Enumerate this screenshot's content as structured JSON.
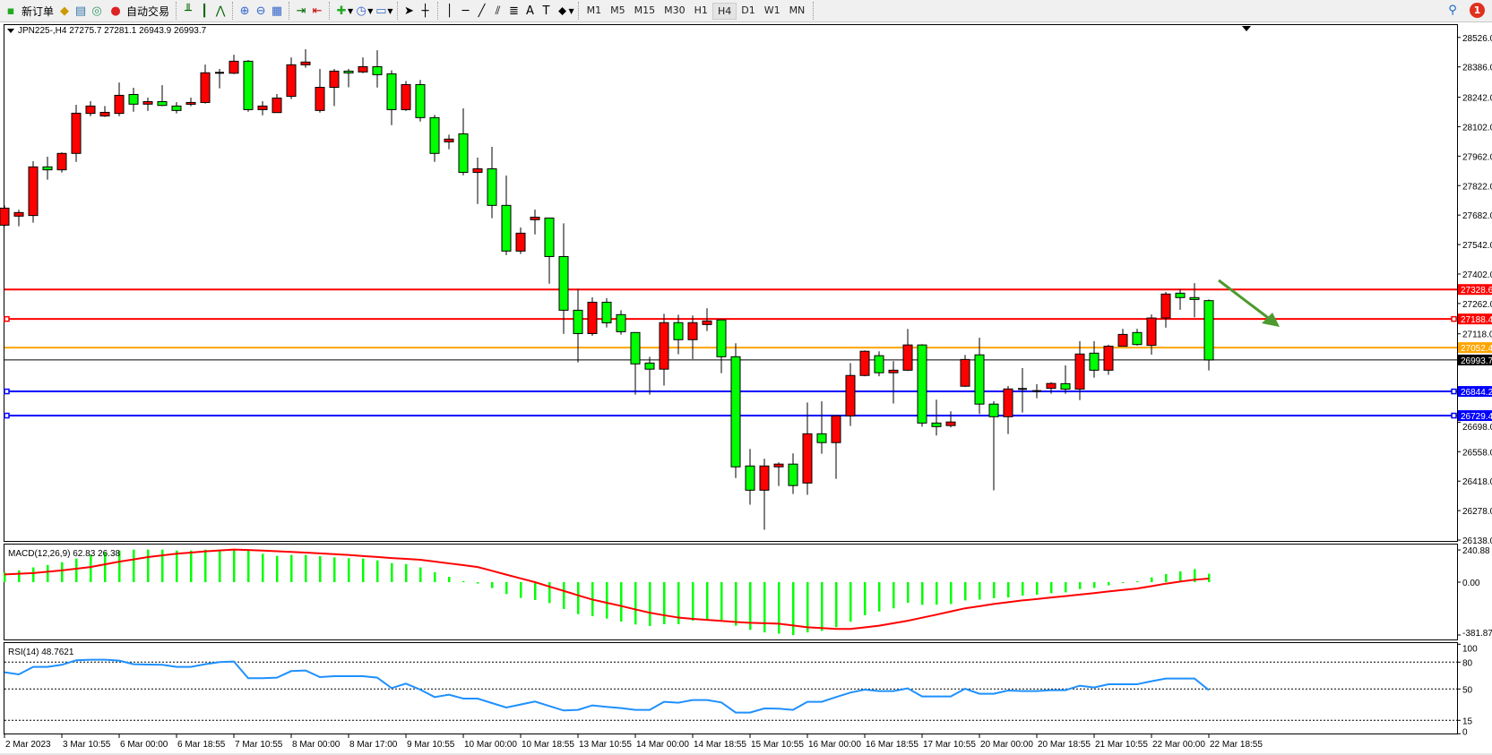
{
  "toolbar": {
    "new_order": "新订单",
    "auto_trading": "自动交易",
    "timeframes": [
      "M1",
      "M5",
      "M15",
      "M30",
      "H1",
      "H4",
      "D1",
      "W1",
      "MN"
    ],
    "active_timeframe": "H4",
    "notification_count": "1"
  },
  "chart": {
    "header": "JPN225-,H4  27275.7 27281.1 26943.9 26993.7",
    "symbol": "JPN225-",
    "timeframe": "H4",
    "colors": {
      "bull": "#ff0000",
      "bear": "#00ff00",
      "doji": "#000000"
    },
    "price_ticks": [
      "28526.0",
      "28386.0",
      "28242.0",
      "28102.0",
      "27962.0",
      "27822.0",
      "27682.0",
      "27542.0",
      "27402.0",
      "27262.0",
      "27118.0",
      "26698.0",
      "26558.0",
      "26418.0",
      "26278.0",
      "26138.0"
    ],
    "levels": [
      {
        "price": 27328.6,
        "label": "27328.6",
        "color": "#ff0000"
      },
      {
        "price": 27188.4,
        "label": "27188.4",
        "color": "#ff0000"
      },
      {
        "price": 27052.4,
        "label": "27052.4",
        "color": "#ffa500"
      },
      {
        "price": 26993.7,
        "label": "26993.7",
        "color": "#000000"
      },
      {
        "price": 26844.2,
        "label": "26844.2",
        "color": "#0000ff"
      },
      {
        "price": 26729.4,
        "label": "26729.4",
        "color": "#0000ff"
      }
    ],
    "time_labels": [
      "2 Mar 2023",
      "3 Mar 10:55",
      "6 Mar 00:00",
      "6 Mar 18:55",
      "7 Mar 10:55",
      "8 Mar 00:00",
      "8 Mar 17:00",
      "9 Mar 10:55",
      "10 Mar 00:00",
      "10 Mar 18:55",
      "13 Mar 10:55",
      "14 Mar 00:00",
      "14 Mar 18:55",
      "15 Mar 10:55",
      "16 Mar 00:00",
      "16 Mar 18:55",
      "17 Mar 10:55",
      "20 Mar 00:00",
      "20 Mar 18:55",
      "21 Mar 10:55",
      "22 Mar 00:00",
      "22 Mar 18:55"
    ],
    "arrow": {
      "color": "#4e9a2e",
      "direction": "down-right"
    }
  },
  "chart_data": [
    {
      "type": "candlestick",
      "fields": [
        "open",
        "high",
        "low",
        "close"
      ],
      "ylim": [
        26138,
        28526
      ],
      "ohlc": [
        [
          27634,
          27728,
          27629,
          27715
        ],
        [
          27677,
          27707,
          27629,
          27694
        ],
        [
          27680,
          27938,
          27646,
          27911
        ],
        [
          27911,
          27959,
          27850,
          27897
        ],
        [
          27897,
          27980,
          27884,
          27975
        ],
        [
          27975,
          28206,
          27935,
          28166
        ],
        [
          28165,
          28223,
          28152,
          28200
        ],
        [
          28153,
          28200,
          28148,
          28170
        ],
        [
          28165,
          28312,
          28152,
          28251
        ],
        [
          28255,
          28287,
          28173,
          28209
        ],
        [
          28209,
          28240,
          28177,
          28221
        ],
        [
          28221,
          28299,
          28199,
          28203
        ],
        [
          28200,
          28219,
          28165,
          28179
        ],
        [
          28213,
          28240,
          28199,
          28217
        ],
        [
          28217,
          28397,
          28212,
          28358
        ],
        [
          28358,
          28376,
          28284,
          28357
        ],
        [
          28356,
          28444,
          28352,
          28413
        ],
        [
          28413,
          28419,
          28173,
          28183
        ],
        [
          28183,
          28223,
          28156,
          28200
        ],
        [
          28169,
          28257,
          28169,
          28238
        ],
        [
          28246,
          28431,
          28233,
          28396
        ],
        [
          28396,
          28470,
          28382,
          28409
        ],
        [
          28179,
          28376,
          28169,
          28289
        ],
        [
          28289,
          28376,
          28200,
          28366
        ],
        [
          28366,
          28376,
          28289,
          28358
        ],
        [
          28362,
          28431,
          28356,
          28387
        ],
        [
          28387,
          28465,
          28288,
          28349
        ],
        [
          28353,
          28370,
          28109,
          28183
        ],
        [
          28183,
          28319,
          28177,
          28302
        ],
        [
          28302,
          28324,
          28126,
          28145
        ],
        [
          28145,
          28158,
          27935,
          27975
        ],
        [
          28030,
          28064,
          27995,
          28043
        ],
        [
          28068,
          28189,
          27871,
          27885
        ],
        [
          27885,
          27955,
          27735,
          27902
        ],
        [
          27902,
          28006,
          27667,
          27728
        ],
        [
          27728,
          27870,
          27492,
          27511
        ],
        [
          27511,
          27623,
          27497,
          27596
        ],
        [
          27660,
          27708,
          27590,
          27672
        ],
        [
          27668,
          27668,
          27356,
          27485
        ],
        [
          27485,
          27643,
          27118,
          27230
        ],
        [
          27230,
          27332,
          26982,
          27119
        ],
        [
          27119,
          27291,
          27109,
          27268
        ],
        [
          27268,
          27287,
          27148,
          27170
        ],
        [
          27209,
          27230,
          27114,
          27128
        ],
        [
          27124,
          27124,
          26829,
          26975
        ],
        [
          26979,
          27009,
          26829,
          26950
        ],
        [
          26950,
          27213,
          26872,
          27171
        ],
        [
          27171,
          27209,
          27021,
          27090
        ],
        [
          27090,
          27205,
          26998,
          27171
        ],
        [
          27162,
          27239,
          27131,
          27179
        ],
        [
          27184,
          27184,
          26931,
          27009
        ],
        [
          27009,
          27073,
          26433,
          26486
        ],
        [
          26490,
          26571,
          26306,
          26375
        ],
        [
          26375,
          26524,
          26187,
          26490
        ],
        [
          26486,
          26507,
          26395,
          26499
        ],
        [
          26499,
          26550,
          26357,
          26397
        ],
        [
          26409,
          26792,
          26353,
          26643
        ],
        [
          26643,
          26797,
          26548,
          26601
        ],
        [
          26601,
          26728,
          26429,
          26728
        ],
        [
          26728,
          26979,
          26680,
          26920
        ],
        [
          26920,
          27039,
          26916,
          27035
        ],
        [
          27014,
          27035,
          26916,
          26933
        ],
        [
          26933,
          26988,
          26787,
          26945
        ],
        [
          26945,
          27141,
          26941,
          27065
        ],
        [
          27065,
          27069,
          26677,
          26694
        ],
        [
          26694,
          26805,
          26635,
          26677
        ],
        [
          26682,
          26750,
          26673,
          26699
        ],
        [
          26869,
          27018,
          26865,
          26996
        ],
        [
          27018,
          27099,
          26737,
          26784
        ],
        [
          26784,
          26798,
          26374,
          26724
        ],
        [
          26724,
          26870,
          26642,
          26856
        ],
        [
          26856,
          26955,
          26744,
          26855
        ],
        [
          26846,
          26879,
          26812,
          26844
        ],
        [
          26859,
          26888,
          26833,
          26882
        ],
        [
          26881,
          26968,
          26833,
          26855
        ],
        [
          26855,
          27083,
          26803,
          27022
        ],
        [
          27026,
          27083,
          26910,
          26945
        ],
        [
          26945,
          27066,
          26923,
          27059
        ],
        [
          27059,
          27142,
          27059,
          27115
        ],
        [
          27124,
          27142,
          27062,
          27067
        ],
        [
          27063,
          27210,
          27019,
          27193
        ],
        [
          27193,
          27317,
          27147,
          27307
        ],
        [
          27311,
          27330,
          27232,
          27290
        ],
        [
          27290,
          27359,
          27196,
          27281
        ],
        [
          27275.7,
          27281.1,
          26943.9,
          26993.7
        ]
      ]
    },
    {
      "type": "bar+line",
      "title": "MACD(12,26,9) 62.83 26.38",
      "ticks": [
        "240.88",
        "0.00",
        "-381.87"
      ],
      "ylim": [
        -381.87,
        240.88
      ],
      "histogram": [
        72,
        88,
        110,
        128,
        149,
        176,
        203,
        225,
        236,
        243,
        243,
        243,
        236,
        236,
        243,
        243,
        243,
        236,
        212,
        196,
        203,
        203,
        194,
        185,
        178,
        176,
        162,
        142,
        135,
        110,
        74,
        40,
        8,
        -10,
        -43,
        -86,
        -114,
        -129,
        -151,
        -194,
        -231,
        -246,
        -263,
        -285,
        -306,
        -317,
        -304,
        -304,
        -278,
        -278,
        -272,
        -315,
        -345,
        -363,
        -372,
        -382,
        -363,
        -353,
        -325,
        -286,
        -239,
        -212,
        -189,
        -149,
        -164,
        -162,
        -158,
        -132,
        -126,
        -116,
        -111,
        -97,
        -90,
        -80,
        -74,
        -50,
        -42,
        -23,
        -4,
        7,
        36,
        61,
        81,
        97,
        62.83
      ],
      "signal": [
        58,
        63,
        68,
        78,
        88,
        100,
        113,
        133,
        153,
        170,
        187,
        200,
        212,
        221,
        230,
        237,
        243,
        240,
        236,
        231,
        226,
        221,
        215,
        209,
        203,
        195,
        188,
        180,
        174,
        167,
        154,
        140,
        127,
        113,
        85,
        56,
        28,
        0,
        -32,
        -63,
        -95,
        -126,
        -149,
        -172,
        -197,
        -221,
        -239,
        -256,
        -265,
        -273,
        -280,
        -288,
        -294,
        -297,
        -300,
        -313,
        -326,
        -332,
        -338,
        -338,
        -327,
        -315,
        -297,
        -279,
        -257,
        -235,
        -212,
        -189,
        -174,
        -158,
        -145,
        -132,
        -122,
        -111,
        -101,
        -90,
        -79,
        -67,
        -57,
        -46,
        -29,
        -11,
        4,
        18,
        26.38
      ],
      "colors": {
        "histogram": "#00ff00",
        "signal": "#ff0000"
      }
    },
    {
      "type": "line",
      "title": "RSI(14) 48.7621",
      "ticks": [
        "100",
        "80",
        "50",
        "15",
        "0"
      ],
      "levels": [
        80,
        50,
        15
      ],
      "ylim": [
        0,
        100
      ],
      "values": [
        68.7,
        66.3,
        74.7,
        74.7,
        77,
        82,
        82.7,
        82.7,
        81.7,
        77.7,
        77.3,
        77,
        74.7,
        74.7,
        77.7,
        80,
        80.7,
        62,
        62,
        62.7,
        70,
        70.7,
        63.3,
        64.3,
        64.3,
        64.3,
        62.7,
        51,
        56,
        49.3,
        41,
        43.7,
        39.3,
        39.3,
        34.3,
        29.3,
        32.7,
        36,
        31,
        26,
        26.7,
        31.7,
        30,
        28.7,
        26.7,
        26.7,
        35.7,
        34.7,
        37.7,
        37.7,
        35,
        23.7,
        23.7,
        28.3,
        28,
        26.7,
        35.7,
        35.7,
        41,
        46,
        49.3,
        47.7,
        47.7,
        50.7,
        41.7,
        41.7,
        41.7,
        50.3,
        44.7,
        44.7,
        48.3,
        47.7,
        47.7,
        48.7,
        48.7,
        53.7,
        51.7,
        55.3,
        55.3,
        55.3,
        58.7,
        61.7,
        61.7,
        61.7,
        48.76
      ],
      "colors": {
        "line": "#1e90ff"
      }
    }
  ]
}
